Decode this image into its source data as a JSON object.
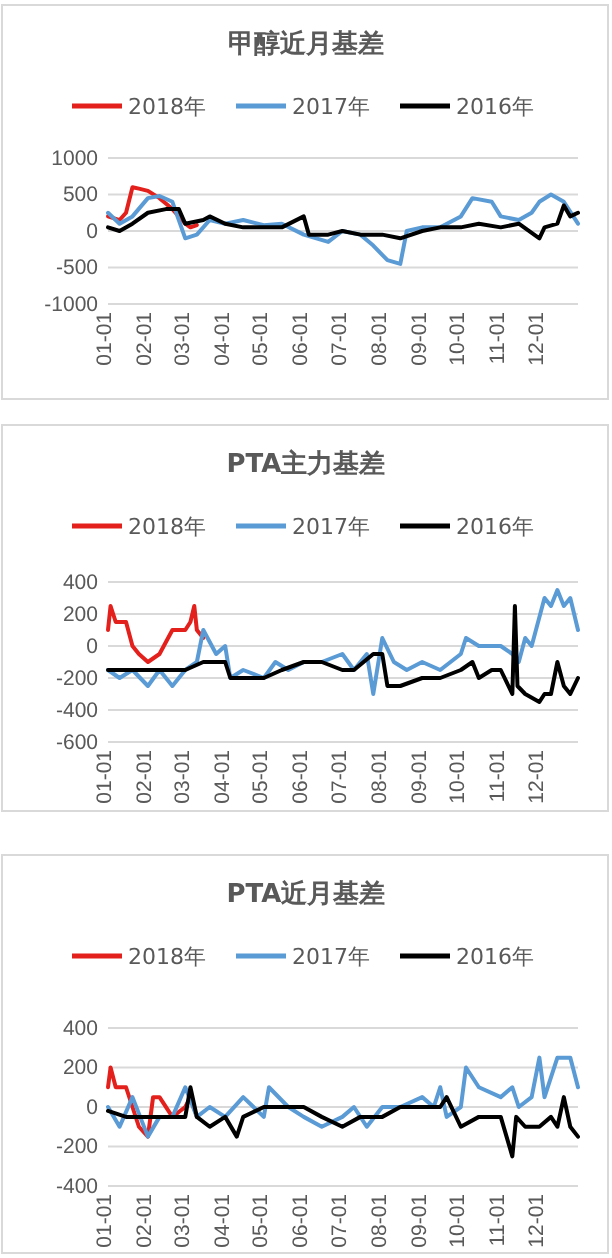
{
  "chart_data": [
    {
      "type": "line",
      "title": "甲醇近月基差",
      "legend": "top",
      "grid": "y",
      "xlim": [
        "--01-01",
        "--12-31"
      ],
      "xticks": [
        {
          "value": "--01-01",
          "label": "01-01"
        },
        {
          "value": "--02-01",
          "label": "02-01"
        },
        {
          "value": "--03-01",
          "label": "03-01"
        },
        {
          "value": "--04-01",
          "label": "04-01"
        },
        {
          "value": "--05-01",
          "label": "05-01"
        },
        {
          "value": "--06-01",
          "label": "06-01"
        },
        {
          "value": "--07-01",
          "label": "07-01"
        },
        {
          "value": "--08-01",
          "label": "08-01"
        },
        {
          "value": "--09-01",
          "label": "09-01"
        },
        {
          "value": "--10-01",
          "label": "10-01"
        },
        {
          "value": "--11-01",
          "label": "11-01"
        },
        {
          "value": "--12-01",
          "label": "12-01"
        }
      ],
      "ylim": [
        -1000,
        1000
      ],
      "yticks": [
        -1000,
        -500,
        0,
        500,
        1000
      ],
      "series": [
        {
          "name": "2018年",
          "color": "#e3201b",
          "x": [
            "--01-01",
            "--01-10",
            "--01-15",
            "--01-20",
            "--01-25",
            "--02-01",
            "--02-10",
            "--02-20",
            "--03-01",
            "--03-05",
            "--03-10"
          ],
          "values": [
            200,
            150,
            250,
            600,
            580,
            550,
            450,
            300,
            100,
            50,
            80
          ]
        },
        {
          "name": "2017年",
          "color": "#5b9bd5",
          "x": [
            "--01-01",
            "--01-10",
            "--01-20",
            "--02-01",
            "--02-10",
            "--02-20",
            "--03-01",
            "--03-10",
            "--03-20",
            "--04-01",
            "--04-15",
            "--05-01",
            "--05-15",
            "--06-01",
            "--06-20",
            "--07-01",
            "--07-15",
            "--07-25",
            "--08-05",
            "--08-15",
            "--08-20",
            "--09-01",
            "--09-15",
            "--10-01",
            "--10-10",
            "--10-25",
            "--11-01",
            "--11-15",
            "--11-25",
            "--12-01",
            "--12-10",
            "--12-20",
            "--12-31"
          ],
          "values": [
            250,
            100,
            200,
            450,
            480,
            400,
            -100,
            -50,
            150,
            100,
            150,
            80,
            100,
            -50,
            -150,
            0,
            -50,
            -200,
            -400,
            -450,
            0,
            50,
            50,
            200,
            450,
            400,
            200,
            150,
            250,
            400,
            500,
            400,
            100
          ]
        },
        {
          "name": "2016年",
          "color": "#000000",
          "x": [
            "--01-01",
            "--01-10",
            "--01-20",
            "--02-01",
            "--02-15",
            "--02-25",
            "--03-01",
            "--03-15",
            "--03-20",
            "--04-01",
            "--04-15",
            "--05-01",
            "--05-15",
            "--06-01",
            "--06-05",
            "--06-20",
            "--07-01",
            "--07-15",
            "--08-01",
            "--08-15",
            "--09-01",
            "--09-15",
            "--10-01",
            "--10-15",
            "--11-01",
            "--11-15",
            "--12-01",
            "--12-05",
            "--12-15",
            "--12-20",
            "--12-25",
            "--12-31"
          ],
          "values": [
            50,
            0,
            100,
            250,
            300,
            300,
            100,
            150,
            200,
            100,
            50,
            50,
            50,
            200,
            -50,
            -50,
            0,
            -50,
            -50,
            -100,
            0,
            50,
            50,
            100,
            50,
            100,
            -100,
            50,
            100,
            350,
            200,
            250
          ]
        }
      ]
    },
    {
      "type": "line",
      "title": "PTA主力基差",
      "legend": "top",
      "grid": "y",
      "xlim": [
        "--01-01",
        "--12-31"
      ],
      "xticks": [
        {
          "value": "--01-01",
          "label": "01-01"
        },
        {
          "value": "--02-01",
          "label": "02-01"
        },
        {
          "value": "--03-01",
          "label": "03-01"
        },
        {
          "value": "--04-01",
          "label": "04-01"
        },
        {
          "value": "--05-01",
          "label": "05-01"
        },
        {
          "value": "--06-01",
          "label": "06-01"
        },
        {
          "value": "--07-01",
          "label": "07-01"
        },
        {
          "value": "--08-01",
          "label": "08-01"
        },
        {
          "value": "--09-01",
          "label": "09-01"
        },
        {
          "value": "--10-01",
          "label": "10-01"
        },
        {
          "value": "--11-01",
          "label": "11-01"
        },
        {
          "value": "--12-01",
          "label": "12-01"
        }
      ],
      "ylim": [
        -600,
        400
      ],
      "yticks": [
        -600,
        -400,
        -200,
        0,
        200,
        400
      ],
      "series": [
        {
          "name": "2018年",
          "color": "#e3201b",
          "x": [
            "--01-01",
            "--01-03",
            "--01-07",
            "--01-15",
            "--01-20",
            "--01-25",
            "--02-01",
            "--02-10",
            "--02-20",
            "--03-01",
            "--03-05",
            "--03-08",
            "--03-10",
            "--03-15"
          ],
          "values": [
            100,
            250,
            150,
            150,
            0,
            -50,
            -100,
            -50,
            100,
            100,
            150,
            250,
            100,
            50
          ]
        },
        {
          "name": "2017年",
          "color": "#5b9bd5",
          "x": [
            "--01-01",
            "--01-10",
            "--01-20",
            "--02-01",
            "--02-10",
            "--02-20",
            "--03-01",
            "--03-10",
            "--03-15",
            "--03-25",
            "--04-01",
            "--04-05",
            "--04-15",
            "--05-01",
            "--05-10",
            "--05-20",
            "--06-01",
            "--06-15",
            "--07-01",
            "--07-10",
            "--07-20",
            "--07-25",
            "--08-01",
            "--08-10",
            "--08-20",
            "--09-01",
            "--09-15",
            "--10-01",
            "--10-05",
            "--10-15",
            "--11-01",
            "--11-10",
            "--11-15",
            "--11-20",
            "--11-25",
            "--12-05",
            "--12-10",
            "--12-15",
            "--12-20",
            "--12-25",
            "--12-31"
          ],
          "values": [
            -150,
            -200,
            -150,
            -250,
            -150,
            -250,
            -150,
            -100,
            100,
            -50,
            0,
            -200,
            -150,
            -200,
            -100,
            -150,
            -100,
            -100,
            -50,
            -150,
            -50,
            -300,
            50,
            -100,
            -150,
            -100,
            -150,
            -50,
            50,
            0,
            0,
            -50,
            -100,
            50,
            0,
            300,
            250,
            350,
            250,
            300,
            100
          ]
        },
        {
          "name": "2016年",
          "color": "#000000",
          "x": [
            "--01-01",
            "--02-01",
            "--02-15",
            "--03-01",
            "--03-15",
            "--04-01",
            "--04-05",
            "--04-15",
            "--05-01",
            "--05-15",
            "--06-01",
            "--06-15",
            "--07-01",
            "--07-10",
            "--07-25",
            "--08-01",
            "--08-05",
            "--08-15",
            "--09-01",
            "--09-15",
            "--10-01",
            "--10-10",
            "--10-15",
            "--10-25",
            "--11-01",
            "--11-10",
            "--11-12",
            "--11-14",
            "--11-20",
            "--12-01",
            "--12-05",
            "--12-10",
            "--12-15",
            "--12-20",
            "--12-25",
            "--12-31"
          ],
          "values": [
            -150,
            -150,
            -150,
            -150,
            -100,
            -100,
            -200,
            -200,
            -200,
            -150,
            -100,
            -100,
            -150,
            -150,
            -50,
            -50,
            -250,
            -250,
            -200,
            -200,
            -150,
            -100,
            -200,
            -150,
            -150,
            -300,
            250,
            -250,
            -300,
            -350,
            -300,
            -300,
            -100,
            -250,
            -300,
            -200
          ]
        }
      ]
    },
    {
      "type": "line",
      "title": "PTA近月基差",
      "legend": "top",
      "grid": "y",
      "xlim": [
        "--01-01",
        "--12-31"
      ],
      "xticks": [
        {
          "value": "--01-01",
          "label": "01-01"
        },
        {
          "value": "--02-01",
          "label": "02-01"
        },
        {
          "value": "--03-01",
          "label": "03-01"
        },
        {
          "value": "--04-01",
          "label": "04-01"
        },
        {
          "value": "--05-01",
          "label": "05-01"
        },
        {
          "value": "--06-01",
          "label": "06-01"
        },
        {
          "value": "--07-01",
          "label": "07-01"
        },
        {
          "value": "--08-01",
          "label": "08-01"
        },
        {
          "value": "--09-01",
          "label": "09-01"
        },
        {
          "value": "--10-01",
          "label": "10-01"
        },
        {
          "value": "--11-01",
          "label": "11-01"
        },
        {
          "value": "--12-01",
          "label": "12-01"
        }
      ],
      "ylim": [
        -400,
        400
      ],
      "yticks": [
        -400,
        -200,
        0,
        200,
        400
      ],
      "series": [
        {
          "name": "2018年",
          "color": "#e3201b",
          "x": [
            "--01-01",
            "--01-03",
            "--01-07",
            "--01-15",
            "--01-20",
            "--01-25",
            "--02-01",
            "--02-05",
            "--02-10",
            "--02-20",
            "--03-01",
            "--03-05",
            "--03-10"
          ],
          "values": [
            100,
            200,
            100,
            100,
            0,
            -100,
            -150,
            50,
            50,
            -50,
            0,
            50,
            -50
          ]
        },
        {
          "name": "2017年",
          "color": "#5b9bd5",
          "x": [
            "--01-01",
            "--01-10",
            "--01-20",
            "--02-01",
            "--02-10",
            "--02-20",
            "--03-01",
            "--03-10",
            "--03-20",
            "--04-01",
            "--04-15",
            "--05-01",
            "--05-05",
            "--05-20",
            "--06-01",
            "--06-15",
            "--07-01",
            "--07-10",
            "--07-20",
            "--08-01",
            "--08-15",
            "--09-01",
            "--09-10",
            "--09-15",
            "--09-20",
            "--10-01",
            "--10-05",
            "--10-15",
            "--11-01",
            "--11-10",
            "--11-15",
            "--11-25",
            "--12-01",
            "--12-05",
            "--12-15",
            "--12-25",
            "--12-31"
          ],
          "values": [
            0,
            -100,
            50,
            -150,
            -50,
            -50,
            100,
            -50,
            0,
            -50,
            50,
            -50,
            100,
            0,
            -50,
            -100,
            -50,
            0,
            -100,
            0,
            0,
            50,
            0,
            100,
            -50,
            0,
            200,
            100,
            50,
            100,
            0,
            50,
            250,
            50,
            250,
            250,
            100
          ]
        },
        {
          "name": "2016年",
          "color": "#000000",
          "x": [
            "--01-01",
            "--01-15",
            "--02-01",
            "--02-15",
            "--03-01",
            "--03-05",
            "--03-10",
            "--03-20",
            "--04-01",
            "--04-10",
            "--04-15",
            "--05-01",
            "--05-15",
            "--06-01",
            "--06-15",
            "--07-01",
            "--07-15",
            "--08-01",
            "--08-15",
            "--09-01",
            "--09-15",
            "--09-20",
            "--10-01",
            "--10-15",
            "--11-01",
            "--11-10",
            "--11-13",
            "--11-20",
            "--12-01",
            "--12-10",
            "--12-15",
            "--12-20",
            "--12-25",
            "--12-31"
          ],
          "values": [
            -20,
            -50,
            -50,
            -50,
            -50,
            100,
            -50,
            -100,
            -50,
            -150,
            -50,
            0,
            0,
            0,
            -50,
            -100,
            -50,
            -50,
            0,
            0,
            0,
            50,
            -100,
            -50,
            -50,
            -250,
            -50,
            -100,
            -100,
            -50,
            -100,
            50,
            -100,
            -150
          ]
        }
      ]
    }
  ]
}
